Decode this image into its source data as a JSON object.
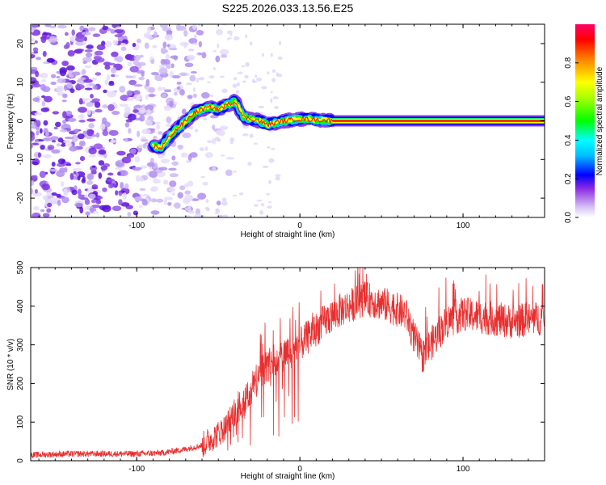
{
  "title": "S225.2026.033.13.56.E25",
  "chart_data": [
    {
      "type": "heatmap",
      "xlabel": "Height of straight line (km)",
      "ylabel": "Frequency (Hz)",
      "xlim": [
        -165,
        150
      ],
      "ylim": [
        -25,
        25
      ],
      "xticks": [
        -100,
        0,
        100
      ],
      "yticks": [
        -20,
        -10,
        0,
        10,
        20
      ],
      "colorbar": {
        "label": "Normalized spectral amplitude",
        "range": [
          0,
          1
        ],
        "ticks": [
          0.0,
          0.2,
          0.4,
          0.6,
          0.8
        ]
      },
      "ridge": [
        {
          "x": -90,
          "y": -6.5
        },
        {
          "x": -85,
          "y": -7
        },
        {
          "x": -80,
          "y": -4
        },
        {
          "x": -75,
          "y": -2
        },
        {
          "x": -70,
          "y": 0
        },
        {
          "x": -65,
          "y": 2
        },
        {
          "x": -60,
          "y": 3
        },
        {
          "x": -55,
          "y": 3.5
        },
        {
          "x": -50,
          "y": 3
        },
        {
          "x": -45,
          "y": 4
        },
        {
          "x": -40,
          "y": 5
        },
        {
          "x": -38,
          "y": 4
        },
        {
          "x": -35,
          "y": 1
        },
        {
          "x": -30,
          "y": 0.5
        },
        {
          "x": -25,
          "y": 0
        },
        {
          "x": -20,
          "y": -1
        },
        {
          "x": -15,
          "y": -0.5
        },
        {
          "x": -10,
          "y": 0
        },
        {
          "x": 0,
          "y": 0.5
        },
        {
          "x": 10,
          "y": 0.3
        },
        {
          "x": 20,
          "y": 0
        },
        {
          "x": 150,
          "y": 0
        }
      ]
    },
    {
      "type": "line",
      "xlabel": "Height of straight line (km)",
      "ylabel": "SNR (10 * v/v)",
      "xlim": [
        -165,
        150
      ],
      "ylim": [
        0,
        500
      ],
      "xticks": [
        -100,
        0,
        100
      ],
      "yticks": [
        0,
        100,
        200,
        300,
        400,
        500
      ],
      "series": [
        {
          "name": "SNR",
          "color": "#e83030",
          "envelope": [
            {
              "x": -165,
              "y": 15
            },
            {
              "x": -140,
              "y": 18
            },
            {
              "x": -100,
              "y": 18
            },
            {
              "x": -85,
              "y": 20
            },
            {
              "x": -70,
              "y": 30
            },
            {
              "x": -60,
              "y": 40
            },
            {
              "x": -50,
              "y": 70
            },
            {
              "x": -45,
              "y": 90
            },
            {
              "x": -40,
              "y": 130
            },
            {
              "x": -30,
              "y": 180
            },
            {
              "x": -25,
              "y": 230
            },
            {
              "x": -15,
              "y": 260
            },
            {
              "x": -5,
              "y": 280
            },
            {
              "x": 5,
              "y": 320
            },
            {
              "x": 15,
              "y": 360
            },
            {
              "x": 25,
              "y": 390
            },
            {
              "x": 40,
              "y": 420
            },
            {
              "x": 55,
              "y": 400
            },
            {
              "x": 65,
              "y": 380
            },
            {
              "x": 70,
              "y": 320
            },
            {
              "x": 75,
              "y": 270
            },
            {
              "x": 80,
              "y": 300
            },
            {
              "x": 90,
              "y": 360
            },
            {
              "x": 100,
              "y": 380
            },
            {
              "x": 115,
              "y": 370
            },
            {
              "x": 130,
              "y": 360
            },
            {
              "x": 150,
              "y": 370
            }
          ],
          "noise": 45
        }
      ]
    }
  ]
}
